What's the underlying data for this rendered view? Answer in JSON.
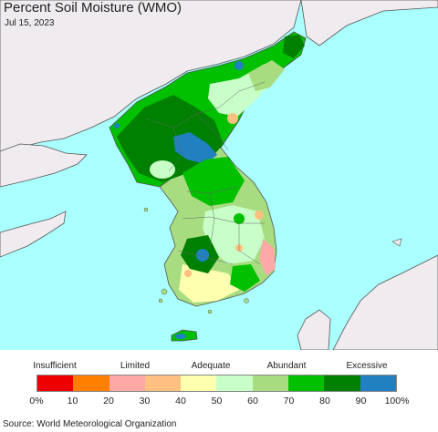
{
  "title": "Percent Soil Moisture (WMO)",
  "date": "Jul 15, 2023",
  "source": "Source: World Meteorological Organization",
  "legend": {
    "categories": [
      "Insufficient",
      "Limited",
      "Adequate",
      "Abundant",
      "Excessive"
    ],
    "ticks": [
      "0%",
      "10",
      "20",
      "30",
      "40",
      "50",
      "60",
      "70",
      "80",
      "90",
      "100%"
    ],
    "colors": [
      "#ee0000",
      "#ff8000",
      "#ffa8a8",
      "#ffc080",
      "#ffffb0",
      "#c8ffc8",
      "#a8dc80",
      "#00c000",
      "#008000",
      "#2080c0"
    ]
  },
  "map_colors": {
    "ocean": "#aaffff",
    "foreign_land": "#efebee",
    "border": "#555555"
  }
}
